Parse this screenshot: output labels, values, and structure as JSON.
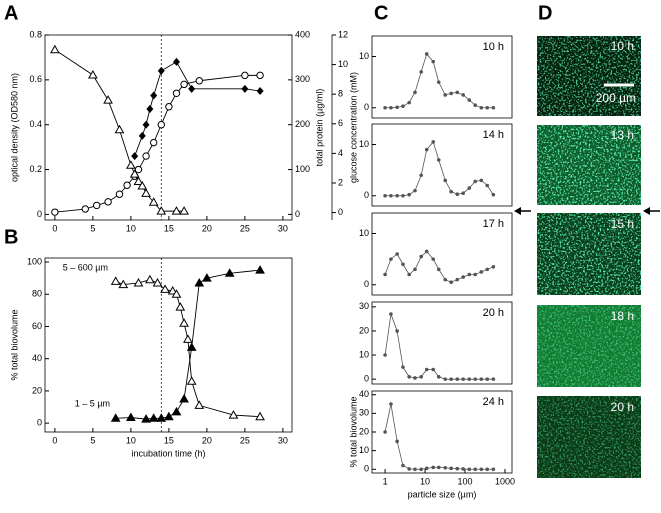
{
  "panel_labels": [
    "A",
    "B",
    "C",
    "D"
  ],
  "micrographs": {
    "labels": [
      "10 h",
      "13 h",
      "15 h",
      "18 h",
      "20 h"
    ],
    "scale_bar": "200 µm"
  },
  "chart_data": [
    {
      "type": "line",
      "xlim": [
        -1.3,
        31.2
      ],
      "xticks": [
        0,
        5,
        10,
        15,
        20,
        25,
        30
      ],
      "ylim": [
        -0.025,
        0.8
      ],
      "yticks": [
        0,
        0.2,
        0.4,
        0.6,
        0.8
      ],
      "y2lim": [
        -12.5,
        400
      ],
      "y2ticks": [
        0,
        100,
        200,
        300,
        400
      ],
      "y3lim": [
        -0.5,
        12
      ],
      "y3ticks": [
        0,
        2,
        4,
        6,
        8,
        10,
        12
      ],
      "ylabel": "optical density (OD580 nm)",
      "y2label": "total protein (µg/ml)",
      "y3label": "glucose concentration (mM)",
      "vline": 14,
      "series": [
        {
          "marker": "diamond-filled",
          "color": "#000",
          "axis": "y",
          "x": [
            10.5,
            11.5,
            12,
            12.5,
            13,
            14,
            16,
            18,
            25,
            27
          ],
          "values": [
            0.26,
            0.35,
            0.4,
            0.47,
            0.53,
            0.64,
            0.68,
            0.56,
            0.56,
            0.55
          ]
        },
        {
          "marker": "circle-open",
          "color": "#000",
          "axis": "y2",
          "x": [
            0,
            4,
            5.5,
            7,
            8.5,
            9.5,
            10.5,
            11,
            12,
            13,
            14,
            15,
            16,
            17,
            19,
            25,
            27
          ],
          "values": [
            5,
            12,
            20,
            28,
            45,
            65,
            85,
            100,
            130,
            160,
            200,
            240,
            270,
            290,
            298,
            310,
            310
          ]
        },
        {
          "marker": "triangle-open",
          "color": "#000",
          "axis": "y3",
          "x": [
            0,
            5,
            7,
            8.5,
            10,
            10.5,
            11,
            11.5,
            12,
            13,
            14,
            16,
            17
          ],
          "values": [
            11,
            9.3,
            7.6,
            5.6,
            3.2,
            2.6,
            2.1,
            1.8,
            1.3,
            0.7,
            0.1,
            0.1,
            0.1
          ]
        }
      ]
    },
    {
      "type": "line",
      "xlim": [
        -1.3,
        31.2
      ],
      "xticks": [
        0,
        5,
        10,
        15,
        20,
        25,
        30
      ],
      "ylim": [
        -5.5,
        102.5
      ],
      "yticks": [
        0,
        20,
        40,
        60,
        80,
        100
      ],
      "xlabel": "incubation time (h)",
      "ylabel": "% total biovolume",
      "vline": 14,
      "series": [
        {
          "name": "5 – 600 µm",
          "marker": "triangle-open",
          "color": "#000",
          "x": [
            8,
            9,
            11,
            12.5,
            13.5,
            14.5,
            15.5,
            16,
            16.5,
            17,
            17.5,
            18,
            19,
            23.5,
            27
          ],
          "values": [
            88,
            86,
            87,
            89,
            87,
            83,
            82,
            80,
            72,
            62,
            52,
            26,
            11,
            5,
            4
          ]
        },
        {
          "name": "1 – 5 µm",
          "marker": "triangle-filled",
          "color": "#000",
          "x": [
            8,
            10,
            12,
            13,
            14,
            15,
            16,
            17,
            18,
            19,
            20,
            23,
            27
          ],
          "values": [
            3,
            3.5,
            2.5,
            3,
            3,
            4,
            7,
            15,
            47,
            87,
            90,
            93,
            95
          ]
        }
      ]
    },
    {
      "type": "line",
      "xscale": "log",
      "xlim": [
        0.47,
        1500
      ],
      "ylim": [
        -2,
        14
      ],
      "yticks": [
        0,
        10
      ],
      "label": "10 h",
      "color": "#555",
      "x": [
        1,
        1.4,
        2,
        2.8,
        4,
        5.6,
        8,
        11,
        16,
        22,
        32,
        45,
        64,
        90,
        128,
        180,
        256,
        360,
        512
      ],
      "values": [
        0,
        0,
        0.1,
        0.3,
        1,
        3,
        7,
        10.5,
        9,
        5,
        2.5,
        2.8,
        3,
        2.5,
        1.5,
        0.5,
        0,
        0,
        0
      ]
    },
    {
      "type": "line",
      "xscale": "log",
      "xlim": [
        0.47,
        1500
      ],
      "ylim": [
        -2,
        14
      ],
      "yticks": [
        0,
        10
      ],
      "label": "14 h",
      "color": "#555",
      "x": [
        1,
        1.4,
        2,
        2.8,
        4,
        5.6,
        8,
        11,
        16,
        22,
        32,
        45,
        64,
        90,
        128,
        180,
        256,
        360,
        512
      ],
      "values": [
        0,
        0,
        0,
        0,
        0.2,
        1,
        4,
        9,
        10.5,
        7,
        3,
        0.8,
        0.3,
        0.5,
        1.5,
        2.8,
        3,
        2,
        0.2
      ]
    },
    {
      "type": "line",
      "xscale": "log",
      "xlim": [
        0.47,
        1500
      ],
      "ylim": [
        -2,
        14
      ],
      "yticks": [
        0,
        10
      ],
      "label": "17 h",
      "color": "#555",
      "x": [
        1,
        1.4,
        2,
        2.8,
        4,
        5.6,
        8,
        11,
        16,
        22,
        32,
        45,
        64,
        90,
        128,
        180,
        256,
        360,
        512
      ],
      "values": [
        2,
        5,
        6,
        4,
        2,
        3,
        5.5,
        6.5,
        5,
        3,
        1,
        0.5,
        1,
        1.5,
        2,
        2,
        2.5,
        3,
        3.5
      ]
    },
    {
      "type": "line",
      "xscale": "log",
      "xlim": [
        0.47,
        1500
      ],
      "ylim": [
        -2,
        32
      ],
      "yticks": [
        0,
        10,
        20,
        30
      ],
      "label": "20 h",
      "color": "#555",
      "x": [
        1,
        1.4,
        2,
        2.8,
        4,
        5.6,
        8,
        11,
        16,
        22,
        32,
        45,
        64,
        90,
        128,
        180,
        256,
        360,
        512
      ],
      "values": [
        10,
        27,
        20,
        5,
        1,
        0.5,
        1,
        4,
        4,
        1,
        0,
        0,
        0,
        0,
        0,
        0,
        0,
        0,
        0
      ]
    },
    {
      "type": "line",
      "xscale": "log",
      "xlim": [
        0.47,
        1500
      ],
      "ylim": [
        -2,
        42
      ],
      "yticks": [
        0,
        10,
        20,
        30,
        40
      ],
      "label": "24 h",
      "color": "#555",
      "xticks": [
        1,
        10,
        100,
        1000
      ],
      "xlabel": "particle size (µm)",
      "ylabel": "% total biovolume",
      "x": [
        1,
        1.4,
        2,
        2.8,
        4,
        5.6,
        8,
        11,
        16,
        22,
        32,
        45,
        64,
        90,
        128,
        180,
        256,
        360,
        512
      ],
      "values": [
        20,
        35,
        15,
        2,
        0.2,
        0,
        0,
        0.5,
        1,
        1,
        0.8,
        0.5,
        0.3,
        0.2,
        0,
        0,
        0,
        0,
        0
      ]
    }
  ]
}
